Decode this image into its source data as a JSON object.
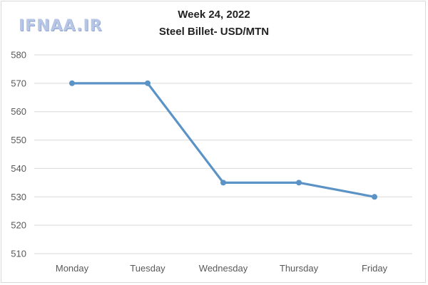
{
  "watermark": "IFNAA.IR",
  "chart_data": {
    "type": "line",
    "title": "Week 24, 2022",
    "subtitle": "Steel Billet- USD/MTN",
    "xlabel": "",
    "ylabel": "",
    "categories": [
      "Monday",
      "Tuesday",
      "Wednesday",
      "Thursday",
      "Friday"
    ],
    "series": [
      {
        "values": [
          570,
          570,
          535,
          535,
          530
        ],
        "color": "#5b93c6"
      }
    ],
    "ylim": [
      510,
      580
    ],
    "yticks": [
      510,
      520,
      530,
      540,
      550,
      560,
      570,
      580
    ],
    "grid": true,
    "legend": "none"
  }
}
